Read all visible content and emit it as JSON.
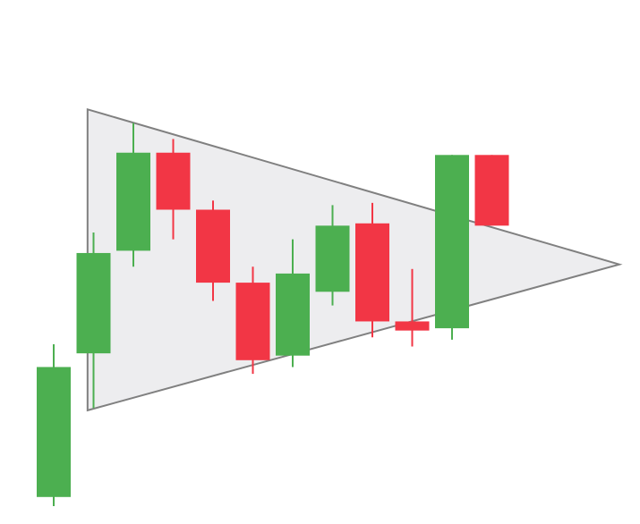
{
  "chart_data": {
    "type": "candlestick",
    "pattern": "symmetrical-triangle",
    "ylim": [
      0,
      100
    ],
    "colors": {
      "bullish": "#4caf50",
      "bearish": "#f23645",
      "triangle_fill": "#ededef",
      "triangle_stroke": "#808080"
    },
    "triangle": [
      {
        "x": 1.85,
        "y": 87
      },
      {
        "x": 1.85,
        "y": 21
      },
      {
        "x": 15.2,
        "y": 53
      }
    ],
    "candles": [
      {
        "x": 1,
        "open": 2,
        "close": 30.5,
        "high": 35.5,
        "low": 0
      },
      {
        "x": 2,
        "open": 33.5,
        "close": 55.5,
        "high": 60,
        "low": 21.5
      },
      {
        "x": 3,
        "open": 56,
        "close": 77.5,
        "high": 84,
        "low": 52.5
      },
      {
        "x": 4,
        "open": 77.5,
        "close": 65,
        "high": 80.5,
        "low": 58.5
      },
      {
        "x": 5,
        "open": 65,
        "close": 49,
        "high": 67,
        "low": 45
      },
      {
        "x": 6,
        "open": 49,
        "close": 32,
        "high": 52.5,
        "low": 29
      },
      {
        "x": 7,
        "open": 33,
        "close": 51,
        "high": 58.5,
        "low": 30.5
      },
      {
        "x": 8,
        "open": 47,
        "close": 61.5,
        "high": 66,
        "low": 44
      },
      {
        "x": 9,
        "open": 62,
        "close": 40.5,
        "high": 66.5,
        "low": 37
      },
      {
        "x": 10,
        "open": 40.5,
        "close": 38.5,
        "high": 52,
        "low": 35
      },
      {
        "x": 11,
        "open": 39,
        "close": 77,
        "high": 77,
        "low": 36.5
      },
      {
        "x": 12,
        "open": 77,
        "close": 61.5,
        "high": 77,
        "low": 61.5
      }
    ]
  }
}
